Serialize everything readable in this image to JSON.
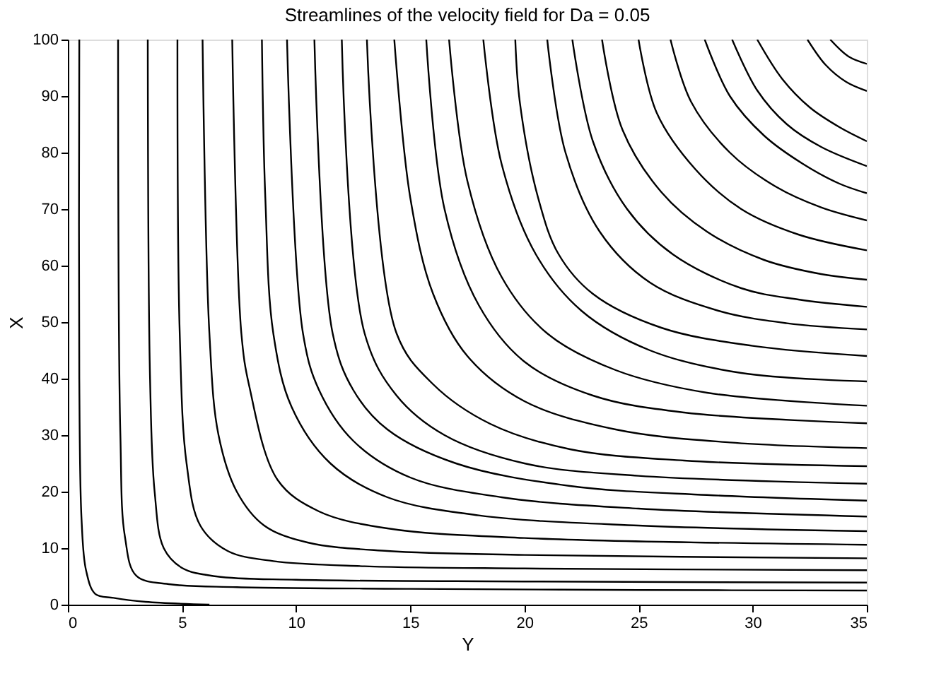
{
  "chart_data": {
    "type": "line",
    "title": "Streamlines of the velocity field for Da = 0.05",
    "xlabel": "Y",
    "ylabel": "X",
    "xlim": [
      0,
      35
    ],
    "xticks": [
      0,
      5,
      10,
      15,
      20,
      25,
      30,
      35
    ],
    "ylim": [
      0,
      100
    ],
    "yticks": [
      0,
      10,
      20,
      30,
      40,
      50,
      60,
      70,
      80,
      90,
      100
    ],
    "grid": false,
    "marker": "none",
    "line_style": "solid",
    "series": [
      {
        "color": "#000000",
        "x": [
          0.5,
          0.5,
          0.6,
          0.8,
          1.2,
          2,
          3.4,
          6.2
        ],
        "values": [
          100,
          40,
          15,
          6,
          1.9,
          1.2,
          0.5,
          0
        ]
      },
      {
        "color": "#000000",
        "x": [
          2.2,
          2.3,
          2.5,
          3.0,
          4.5,
          7.4,
          15,
          25,
          35
        ],
        "values": [
          100,
          30,
          12,
          5.1,
          3.6,
          3.1,
          2.8,
          2.6,
          2.5
        ]
      },
      {
        "color": "#000000",
        "x": [
          3.5,
          3.6,
          3.8,
          4.2,
          5,
          6.5,
          10,
          20,
          35
        ],
        "values": [
          100,
          40,
          20,
          10,
          6.5,
          5,
          4.4,
          4.1,
          3.9
        ]
      },
      {
        "color": "#000000",
        "x": [
          4.8,
          4.9,
          5.2,
          5.8,
          7,
          9,
          13,
          20,
          35
        ],
        "values": [
          100,
          48,
          25,
          14,
          9.5,
          7.7,
          6.8,
          6.4,
          6.1
        ]
      },
      {
        "color": "#000000",
        "x": [
          5.9,
          6.2,
          6.6,
          7.4,
          8.6,
          10.5,
          14,
          20,
          35
        ],
        "values": [
          100,
          48,
          30,
          20,
          14,
          11,
          9.5,
          8.8,
          8.2
        ]
      },
      {
        "color": "#000000",
        "x": [
          7.2,
          7.6,
          7.95,
          9.2,
          11,
          14,
          20,
          35
        ],
        "values": [
          100,
          48,
          38.6,
          22,
          16.5,
          13.5,
          11.8,
          10.6
        ]
      },
      {
        "color": "#000000",
        "x": [
          8.5,
          8.65,
          9.0,
          9.8,
          11.5,
          14,
          18,
          25,
          35
        ],
        "values": [
          100,
          72,
          48,
          35,
          25,
          19,
          15.8,
          14,
          13.0
        ]
      },
      {
        "color": "#000000",
        "x": [
          9.6,
          10.3,
          11,
          12.5,
          15,
          19,
          25,
          35
        ],
        "values": [
          100,
          48,
          38,
          29,
          22.5,
          19,
          17,
          15.6
        ]
      },
      {
        "color": "#000000",
        "x": [
          10.8,
          11.6,
          12.5,
          14,
          17,
          22,
          28,
          35
        ],
        "values": [
          100,
          48,
          38,
          31,
          25,
          21,
          19.4,
          18.4
        ]
      },
      {
        "color": "#000000",
        "x": [
          12,
          13,
          14.4,
          16.5,
          20,
          25,
          35
        ],
        "values": [
          100,
          48,
          37,
          30,
          25,
          22.8,
          21.4
        ]
      },
      {
        "color": "#000000",
        "x": [
          13.1,
          14.4,
          16,
          18.5,
          22,
          27,
          35
        ],
        "values": [
          100,
          48,
          39,
          32,
          27.5,
          25.5,
          24.5
        ]
      },
      {
        "color": "#000000",
        "x": [
          14.3,
          15,
          16,
          17.5,
          20,
          24,
          29,
          35
        ],
        "values": [
          100,
          72,
          55,
          44,
          36,
          31,
          28.7,
          27.7
        ]
      },
      {
        "color": "#000000",
        "x": [
          15.7,
          16.5,
          18,
          20,
          23,
          27,
          35
        ],
        "values": [
          100,
          70,
          53,
          43,
          37,
          34,
          32.1
        ]
      },
      {
        "color": "#000000",
        "x": [
          16.7,
          17.5,
          19,
          21,
          24,
          28,
          35
        ],
        "values": [
          100,
          75,
          58,
          48,
          41.5,
          37.5,
          35.2
        ]
      },
      {
        "color": "#000000",
        "x": [
          18.2,
          19,
          20.5,
          22.5,
          25.5,
          29.5,
          35
        ],
        "values": [
          100,
          78,
          62,
          52,
          45,
          41,
          39.5
        ]
      },
      {
        "color": "#000000",
        "x": [
          19.6,
          19.8,
          20.6,
          21.5,
          23,
          26,
          30,
          35
        ],
        "values": [
          100,
          88.9,
          72,
          62,
          55,
          49,
          45.8,
          44
        ]
      },
      {
        "color": "#000000",
        "x": [
          21,
          21.8,
          23.3,
          25.5,
          28.5,
          31.5,
          35
        ],
        "values": [
          100,
          80,
          66,
          57,
          52,
          49.8,
          48.7
        ]
      },
      {
        "color": "#000000",
        "x": [
          22.1,
          23,
          24.5,
          26.5,
          29.5,
          32,
          35
        ],
        "values": [
          100,
          82,
          70,
          62,
          56,
          54,
          52.7
        ]
      },
      {
        "color": "#000000",
        "x": [
          23.4,
          24.3,
          26,
          28,
          30.5,
          33,
          35
        ],
        "values": [
          100,
          84,
          73,
          66,
          61,
          58.5,
          57.5
        ]
      },
      {
        "color": "#000000",
        "x": [
          25,
          25.8,
          27.5,
          29.5,
          32,
          35
        ],
        "values": [
          100,
          87,
          77,
          70,
          65.5,
          62.7
        ]
      },
      {
        "color": "#000000",
        "x": [
          26.4,
          27.3,
          29,
          31,
          33,
          35
        ],
        "values": [
          100,
          89,
          80,
          74,
          70.3,
          68
        ]
      },
      {
        "color": "#000000",
        "x": [
          27.9,
          29,
          30.5,
          32.2,
          33.8,
          35
        ],
        "values": [
          100,
          90,
          83,
          78,
          74.5,
          72.8
        ]
      },
      {
        "color": "#000000",
        "x": [
          29.1,
          30.2,
          31.5,
          33,
          35
        ],
        "values": [
          100,
          91,
          85,
          81,
          77.6
        ]
      },
      {
        "color": "#000000",
        "x": [
          30.2,
          31.3,
          32.5,
          33.8,
          35
        ],
        "values": [
          100,
          93,
          88,
          84.5,
          82
        ]
      },
      {
        "color": "#000000",
        "x": [
          32.4,
          33.2,
          34.1,
          35
        ],
        "values": [
          100,
          95.5,
          92.5,
          90.9
        ]
      },
      {
        "color": "#000000",
        "x": [
          33.4,
          34.2,
          35
        ],
        "values": [
          100,
          97,
          95.7
        ]
      }
    ]
  }
}
